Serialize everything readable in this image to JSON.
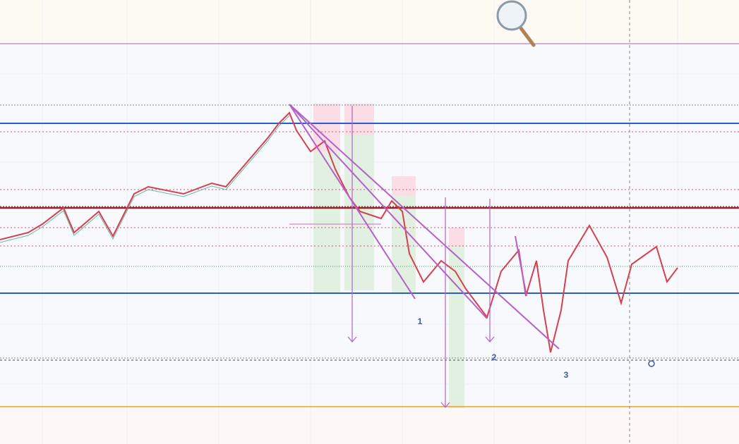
{
  "annotations": {
    "labels": [
      "1",
      "2",
      "3"
    ]
  }
}
